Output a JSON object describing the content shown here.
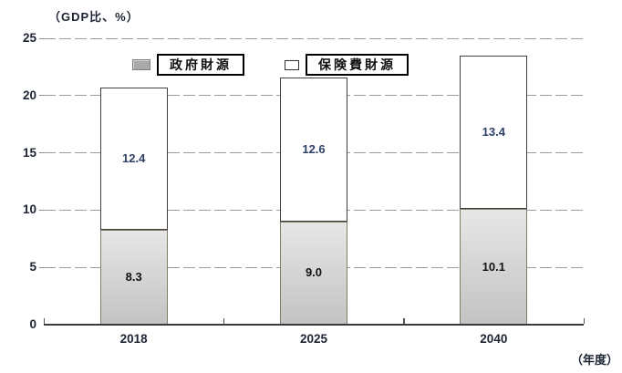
{
  "title": "（GDP比、%）",
  "xaxis_unit": "（年度）",
  "colors": {
    "government_fill": "#d2d2d2",
    "premium_fill": "#ffffff",
    "government_swatch": "#a9a9a9",
    "premium_swatch": "#ffffff",
    "grid": "#9b9b9b",
    "axis": "#3a3a3a",
    "text": "#1d2433",
    "value_on_white": "#2e4066",
    "value_on_gray": "#121212"
  },
  "chart_data": {
    "type": "bar",
    "stacked": true,
    "title": "（GDP比、%）",
    "xlabel": "（年度）",
    "ylabel": "GDP比（%）",
    "categories": [
      "2018",
      "2025",
      "2040"
    ],
    "series": [
      {
        "name": "政府財源",
        "values": [
          8.3,
          9.0,
          10.1
        ],
        "value_labels": [
          "8.3",
          "9.0",
          "10.1"
        ],
        "color": "#d2d2d2",
        "swatch_color": "#a9a9a9",
        "value_color": "#121212"
      },
      {
        "name": "保険費財源",
        "values": [
          12.4,
          12.6,
          13.4
        ],
        "value_labels": [
          "12.4",
          "12.6",
          "13.4"
        ],
        "color": "#ffffff",
        "swatch_color": "#ffffff",
        "value_color": "#2e4066"
      }
    ],
    "totals": [
      20.7,
      21.6,
      23.5
    ],
    "ylim": [
      0,
      25
    ],
    "yticks": [
      0,
      5,
      10,
      15,
      20,
      25
    ],
    "grid": true,
    "gridline_style": "dashed",
    "legend_position": "top-inside"
  }
}
